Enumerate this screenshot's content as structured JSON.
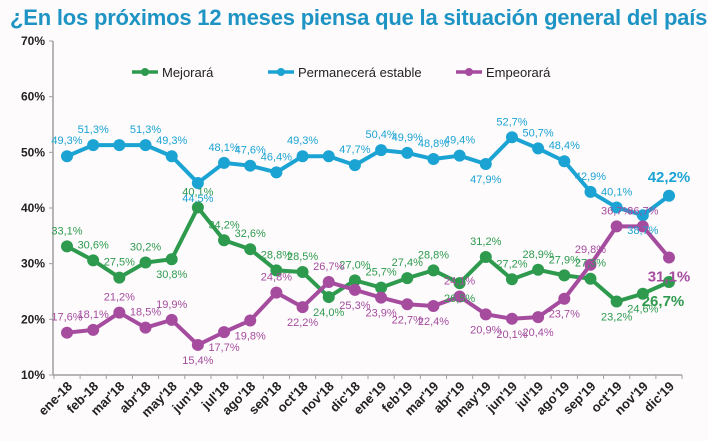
{
  "chart_data": {
    "type": "line",
    "title": "¿En los próximos 12 meses piensa que la situación general del país…?",
    "xlabel": "",
    "ylabel": "",
    "ylim": [
      10,
      70
    ],
    "yticks": [
      "10%",
      "20%",
      "30%",
      "40%",
      "50%",
      "60%",
      "70%"
    ],
    "ytick_values": [
      10,
      20,
      30,
      40,
      50,
      60,
      70
    ],
    "grid": false,
    "legend_position": "top-center",
    "categories": [
      "ene-18",
      "feb-18",
      "mar'18",
      "abr'18",
      "may'18",
      "jun'18",
      "jul'18",
      "ago'18",
      "sep'18",
      "oct'18",
      "nov'18",
      "dic'18",
      "ene'19",
      "feb'19",
      "mar'19",
      "abr'19",
      "may'19",
      "jun'19",
      "jul'19",
      "ago'19",
      "sep'19",
      "oct'19",
      "nov'19",
      "dic'19"
    ],
    "series": [
      {
        "name": "Mejorará",
        "color": "#2e9a4e",
        "values": [
          33.1,
          30.6,
          27.5,
          30.2,
          30.8,
          40.1,
          34.2,
          32.6,
          28.8,
          28.5,
          24.0,
          27.0,
          25.7,
          27.4,
          28.8,
          26.5,
          31.2,
          27.2,
          28.9,
          27.9,
          27.3,
          23.2,
          24.6,
          26.7
        ],
        "labels": [
          "33,1%",
          "30,6%",
          "27,5%",
          "30,2%",
          "30,8%",
          "40,1%",
          "34,2%",
          "32,6%",
          "28,8%",
          "28,5%",
          "24,0%",
          "27,0%",
          "25,7%",
          "27,4%",
          "28,8%",
          "26,5%",
          "31,2%",
          "27,2%",
          "28,9%",
          "27,9%",
          "27,3%",
          "23,2%",
          "24,6%",
          "26,7%"
        ]
      },
      {
        "name": "Permanecerá estable",
        "color": "#1ba3d3",
        "values": [
          49.3,
          51.3,
          51.3,
          51.3,
          49.3,
          44.5,
          48.1,
          47.6,
          46.4,
          49.3,
          49.3,
          47.7,
          50.4,
          49.9,
          48.8,
          49.4,
          47.9,
          52.7,
          50.7,
          48.4,
          42.9,
          40.1,
          38.7,
          42.2
        ],
        "labels": [
          "49,3%",
          "51,3%",
          "",
          "51,3%",
          "49,3%",
          "44,5%",
          "48,1%",
          "47,6%",
          "46,4%",
          "49,3%",
          "",
          "47,7%",
          "50,4%",
          "49,9%",
          "48,8%",
          "49,4%",
          "47,9%",
          "52,7%",
          "50,7%",
          "48,4%",
          "42,9%",
          "40,1%",
          "38,7%",
          "42,2%"
        ]
      },
      {
        "name": "Empeorará",
        "color": "#a54c9f",
        "values": [
          17.6,
          18.1,
          21.2,
          18.5,
          19.9,
          15.4,
          17.7,
          19.8,
          24.8,
          22.2,
          26.7,
          25.3,
          23.9,
          22.7,
          22.4,
          24.1,
          20.9,
          20.1,
          20.4,
          23.7,
          29.8,
          36.7,
          36.7,
          31.1
        ],
        "labels": [
          "17,6%",
          "18,1%",
          "21,2%",
          "18,5%",
          "19,9%",
          "15,4%",
          "17,7%",
          "19,8%",
          "24,8%",
          "22,2%",
          "26,7%",
          "25,3%",
          "23,9%",
          "22,7%",
          "22,4%",
          "24,1%",
          "20,9%",
          "20,1%",
          "20,4%",
          "23,7%",
          "29,8%",
          "36,7%",
          "36,7%",
          "31,1%"
        ]
      }
    ]
  }
}
